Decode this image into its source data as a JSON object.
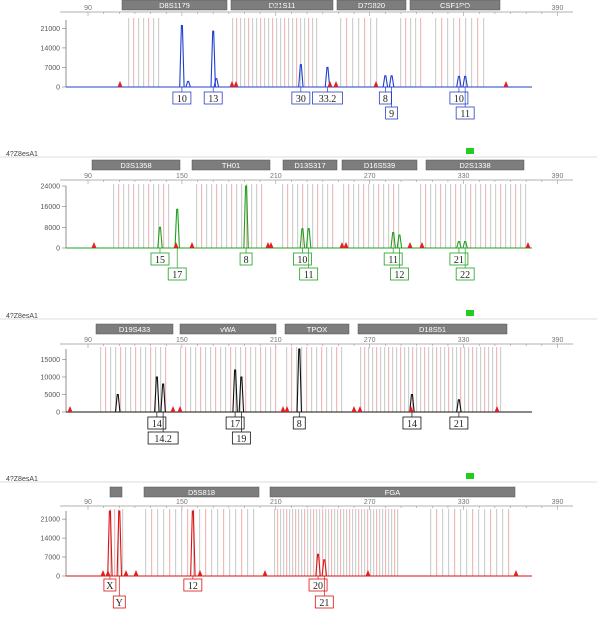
{
  "chart_data": [
    {
      "type": "line",
      "sample": "",
      "color": "#1f3fd0",
      "x_ticks": [
        "90",
        "150",
        "210",
        "270",
        "330",
        "390"
      ],
      "y_ticks": [
        "21000",
        "14000",
        "7000",
        "0"
      ],
      "ylim": [
        0,
        24000
      ],
      "markers": [
        "D8S1179",
        "D21S11",
        "D7S820",
        "CSF1PO"
      ],
      "peaks": [
        {
          "x": 150,
          "height": 22000
        },
        {
          "x": 154,
          "height": 2000
        },
        {
          "x": 170,
          "height": 20000
        },
        {
          "x": 172,
          "height": 3000
        },
        {
          "x": 226,
          "height": 8000
        },
        {
          "x": 243,
          "height": 7000
        },
        {
          "x": 280,
          "height": 4000
        },
        {
          "x": 284,
          "height": 4000
        },
        {
          "x": 327,
          "height": 3800
        },
        {
          "x": 331,
          "height": 3800
        }
      ],
      "alleles": [
        {
          "x": 150,
          "label": "10",
          "row": 0
        },
        {
          "x": 170,
          "label": "13",
          "row": 0
        },
        {
          "x": 226,
          "label": "30",
          "row": 0
        },
        {
          "x": 243,
          "label": "33.2",
          "row": 0
        },
        {
          "x": 280,
          "label": "8",
          "row": 0
        },
        {
          "x": 284,
          "label": "9",
          "row": 1
        },
        {
          "x": 327,
          "label": "10",
          "row": 0
        },
        {
          "x": 331,
          "label": "11",
          "row": 1
        }
      ]
    },
    {
      "type": "line",
      "sample": "4?Z8esA1",
      "color": "#1ea01e",
      "x_ticks": [
        "90",
        "150",
        "210",
        "270",
        "330",
        "390"
      ],
      "y_ticks": [
        "24000",
        "16000",
        "8000",
        "0"
      ],
      "ylim": [
        0,
        24000
      ],
      "markers": [
        "D3S1358",
        "TH01",
        "D13S317",
        "D16S539",
        "D2S1338"
      ],
      "peaks": [
        {
          "x": 136,
          "height": 8000
        },
        {
          "x": 147,
          "height": 15000
        },
        {
          "x": 191,
          "height": 24000
        },
        {
          "x": 227,
          "height": 7500
        },
        {
          "x": 231,
          "height": 7500
        },
        {
          "x": 285,
          "height": 6000
        },
        {
          "x": 289,
          "height": 5000
        },
        {
          "x": 327,
          "height": 2500
        },
        {
          "x": 331,
          "height": 2500
        }
      ],
      "alleles": [
        {
          "x": 136,
          "label": "15",
          "row": 0
        },
        {
          "x": 147,
          "label": "17",
          "row": 1
        },
        {
          "x": 191,
          "label": "8",
          "row": 0
        },
        {
          "x": 227,
          "label": "10",
          "row": 0
        },
        {
          "x": 231,
          "label": "11",
          "row": 1
        },
        {
          "x": 285,
          "label": "11",
          "row": 0
        },
        {
          "x": 289,
          "label": "12",
          "row": 1
        },
        {
          "x": 327,
          "label": "21",
          "row": 0
        },
        {
          "x": 331,
          "label": "22",
          "row": 1
        }
      ]
    },
    {
      "type": "line",
      "sample": "4?Z8esA1",
      "color": "#111111",
      "x_ticks": [
        "90",
        "150",
        "210",
        "270",
        "330",
        "390"
      ],
      "y_ticks": [
        "15000",
        "10000",
        "5000",
        "0"
      ],
      "ylim": [
        0,
        18000
      ],
      "markers": [
        "D19S433",
        "vWA",
        "TPOX",
        "D18S51"
      ],
      "peaks": [
        {
          "x": 109,
          "height": 5000
        },
        {
          "x": 134,
          "height": 10000
        },
        {
          "x": 138,
          "height": 8000
        },
        {
          "x": 184,
          "height": 12000
        },
        {
          "x": 188,
          "height": 10000
        },
        {
          "x": 225,
          "height": 18000
        },
        {
          "x": 297,
          "height": 5000
        },
        {
          "x": 327,
          "height": 3500
        }
      ],
      "alleles": [
        {
          "x": 134,
          "label": "14",
          "row": 0
        },
        {
          "x": 138,
          "label": "14.2",
          "row": 1
        },
        {
          "x": 184,
          "label": "17",
          "row": 0
        },
        {
          "x": 188,
          "label": "19",
          "row": 1
        },
        {
          "x": 225,
          "label": "8",
          "row": 0
        },
        {
          "x": 297,
          "label": "14",
          "row": 0
        },
        {
          "x": 327,
          "label": "21",
          "row": 0
        }
      ]
    },
    {
      "type": "line",
      "sample": "4?Z8esA1",
      "color": "#dd1111",
      "x_ticks": [
        "90",
        "150",
        "210",
        "270",
        "330",
        "390"
      ],
      "y_ticks": [
        "21000",
        "14000",
        "7000",
        "0"
      ],
      "ylim": [
        0,
        24000
      ],
      "markers": [
        "",
        "D5S818",
        "FGA"
      ],
      "peaks": [
        {
          "x": 104,
          "height": 24000
        },
        {
          "x": 110,
          "height": 24000
        },
        {
          "x": 157,
          "height": 24000
        },
        {
          "x": 237,
          "height": 8000
        },
        {
          "x": 241,
          "height": 6000
        }
      ],
      "alleles": [
        {
          "x": 104,
          "label": "X",
          "row": 0
        },
        {
          "x": 110,
          "label": "Y",
          "row": 1
        },
        {
          "x": 157,
          "label": "12",
          "row": 0
        },
        {
          "x": 237,
          "label": "20",
          "row": 0
        },
        {
          "x": 241,
          "label": "21",
          "row": 1
        }
      ]
    }
  ]
}
